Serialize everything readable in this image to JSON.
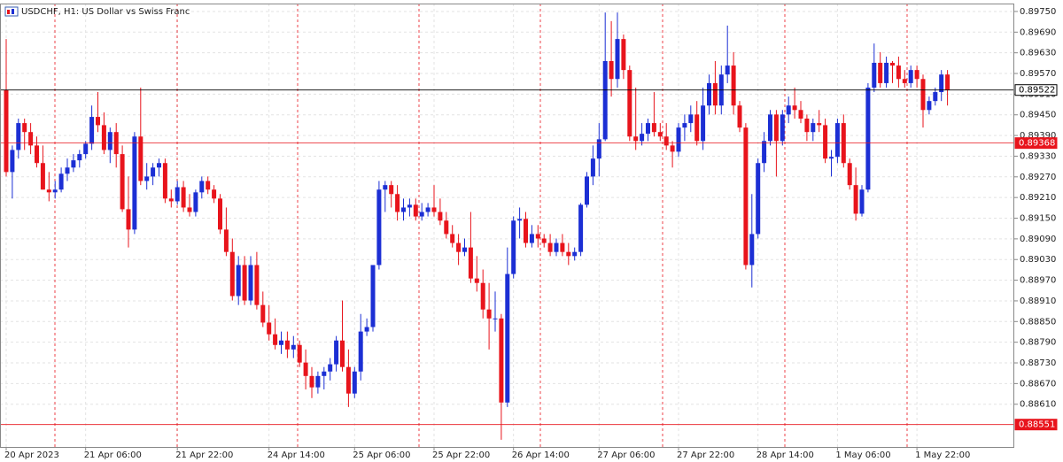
{
  "chart_data": {
    "type": "candlestick",
    "title": "USDCHF, H1:  US Dollar vs Swiss Franc",
    "up_color": "#1c2fd4",
    "down_color": "#e8141c",
    "grid": true,
    "ylim": [
      0.88486,
      0.89773
    ],
    "yticks": [
      {
        "value": 0.8975,
        "label": "0.89750"
      },
      {
        "value": 0.8969,
        "label": "0.89690"
      },
      {
        "value": 0.8963,
        "label": "0.89630"
      },
      {
        "value": 0.8957,
        "label": "0.89570"
      },
      {
        "value": 0.8951,
        "label": "0.89510"
      },
      {
        "value": 0.8945,
        "label": "0.89450"
      },
      {
        "value": 0.8939,
        "label": "0.89390"
      },
      {
        "value": 0.8933,
        "label": "0.89330"
      },
      {
        "value": 0.8927,
        "label": "0.89270"
      },
      {
        "value": 0.8921,
        "label": "0.89210"
      },
      {
        "value": 0.8915,
        "label": "0.89150"
      },
      {
        "value": 0.8909,
        "label": "0.89090"
      },
      {
        "value": 0.8903,
        "label": "0.89030"
      },
      {
        "value": 0.8897,
        "label": "0.88970"
      },
      {
        "value": 0.8891,
        "label": "0.88910"
      },
      {
        "value": 0.8885,
        "label": "0.88850"
      },
      {
        "value": 0.8879,
        "label": "0.88790"
      },
      {
        "value": 0.8873,
        "label": "0.88730"
      },
      {
        "value": 0.8867,
        "label": "0.88670"
      },
      {
        "value": 0.8861,
        "label": "0.88610"
      }
    ],
    "levels": [
      {
        "value": 0.89522,
        "color": "#000000"
      },
      {
        "value": 0.89368,
        "color": "#e8141c"
      },
      {
        "value": 0.88551,
        "color": "#e8141c"
      }
    ],
    "categories": [
      "20 Apr 2023",
      null,
      null,
      null,
      null,
      null,
      null,
      null,
      null,
      null,
      null,
      null,
      null,
      "21 Apr 06:00",
      null,
      null,
      null,
      null,
      null,
      null,
      null,
      null,
      null,
      null,
      null,
      null,
      null,
      null,
      "21 Apr 22:00",
      null,
      null,
      null,
      null,
      null,
      null,
      null,
      null,
      null,
      null,
      null,
      null,
      null,
      null,
      "24 Apr 14:00",
      null,
      null,
      null,
      null,
      null,
      null,
      null,
      null,
      null,
      null,
      null,
      null,
      null,
      "25 Apr 06:00",
      null,
      null,
      null,
      null,
      null,
      null,
      null,
      null,
      null,
      null,
      null,
      null,
      "25 Apr 22:00",
      null,
      null,
      null,
      null,
      null,
      null,
      null,
      null,
      null,
      null,
      null,
      null,
      "26 Apr 14:00",
      null,
      null,
      null,
      null,
      null,
      null,
      null,
      null,
      null,
      null,
      null,
      null,
      null,
      "27 Apr 06:00",
      null,
      null,
      null,
      null,
      null,
      null,
      null,
      null,
      null,
      null,
      null,
      null,
      "27 Apr 22:00",
      null,
      null,
      null,
      null,
      null,
      null,
      null,
      null,
      null,
      null,
      null,
      null,
      "28 Apr 14:00",
      null,
      null,
      null,
      null,
      null,
      null,
      null,
      null,
      null,
      null,
      null,
      null,
      "1 May 06:00",
      null,
      null,
      null,
      null,
      null,
      null,
      null,
      null,
      null,
      null,
      null,
      null,
      "1 May 22:00",
      null,
      null,
      null,
      null,
      null
    ],
    "candles": [
      [
        0.89522,
        0.8967,
        0.89271,
        0.89284
      ],
      [
        0.89284,
        0.89361,
        0.89207,
        0.89348
      ],
      [
        0.89348,
        0.89439,
        0.89323,
        0.89426
      ],
      [
        0.89426,
        0.89439,
        0.89348,
        0.894
      ],
      [
        0.894,
        0.89426,
        0.89336,
        0.89361
      ],
      [
        0.89361,
        0.89387,
        0.89297,
        0.8931
      ],
      [
        0.8931,
        0.89361,
        0.89233,
        0.89233
      ],
      [
        0.89233,
        0.89284,
        0.89199,
        0.89225
      ],
      [
        0.89225,
        0.89258,
        0.89207,
        0.89233
      ],
      [
        0.89233,
        0.89297,
        0.89225,
        0.89279
      ],
      [
        0.89279,
        0.89323,
        0.89258,
        0.89297
      ],
      [
        0.89297,
        0.89336,
        0.89284,
        0.89318
      ],
      [
        0.89318,
        0.89348,
        0.89297,
        0.89336
      ],
      [
        0.89336,
        0.89374,
        0.89323,
        0.89366
      ],
      [
        0.89366,
        0.89477,
        0.89348,
        0.89444
      ],
      [
        0.89444,
        0.89516,
        0.894,
        0.8942
      ],
      [
        0.8942,
        0.89457,
        0.89336,
        0.89348
      ],
      [
        0.89348,
        0.89413,
        0.8931,
        0.894
      ],
      [
        0.894,
        0.89426,
        0.89297,
        0.89336
      ],
      [
        0.89336,
        0.89361,
        0.89168,
        0.89176
      ],
      [
        0.89176,
        0.89271,
        0.89065,
        0.89117
      ],
      [
        0.89117,
        0.894,
        0.89104,
        0.89387
      ],
      [
        0.89387,
        0.89529,
        0.89246,
        0.89258
      ],
      [
        0.89258,
        0.8931,
        0.89233,
        0.89271
      ],
      [
        0.89271,
        0.8931,
        0.89246,
        0.89297
      ],
      [
        0.89297,
        0.89323,
        0.89271,
        0.8931
      ],
      [
        0.8931,
        0.89323,
        0.89194,
        0.89207
      ],
      [
        0.89207,
        0.89233,
        0.89181,
        0.89199
      ],
      [
        0.89199,
        0.89258,
        0.89189,
        0.8924
      ],
      [
        0.8924,
        0.89258,
        0.89168,
        0.89181
      ],
      [
        0.89181,
        0.8922,
        0.89155,
        0.89168
      ],
      [
        0.89168,
        0.89233,
        0.89155,
        0.89225
      ],
      [
        0.89225,
        0.89271,
        0.89207,
        0.89258
      ],
      [
        0.89258,
        0.89271,
        0.8922,
        0.89233
      ],
      [
        0.89233,
        0.89246,
        0.89194,
        0.89207
      ],
      [
        0.89207,
        0.8922,
        0.89104,
        0.89117
      ],
      [
        0.89117,
        0.89181,
        0.8904,
        0.89052
      ],
      [
        0.89052,
        0.89091,
        0.88911,
        0.88924
      ],
      [
        0.88924,
        0.8904,
        0.88898,
        0.89014
      ],
      [
        0.89014,
        0.8904,
        0.88898,
        0.88911
      ],
      [
        0.88911,
        0.8904,
        0.88898,
        0.89014
      ],
      [
        0.89014,
        0.89052,
        0.88885,
        0.88898
      ],
      [
        0.88898,
        0.88937,
        0.88834,
        0.88847
      ],
      [
        0.88847,
        0.88898,
        0.88795,
        0.88813
      ],
      [
        0.88813,
        0.88859,
        0.88769,
        0.88782
      ],
      [
        0.88782,
        0.88821,
        0.88756,
        0.88795
      ],
      [
        0.88795,
        0.88821,
        0.88744,
        0.88769
      ],
      [
        0.88769,
        0.88808,
        0.88744,
        0.88782
      ],
      [
        0.88782,
        0.88795,
        0.88718,
        0.88731
      ],
      [
        0.88731,
        0.88769,
        0.88653,
        0.88692
      ],
      [
        0.88692,
        0.88718,
        0.88628,
        0.88659
      ],
      [
        0.88659,
        0.88705,
        0.88641,
        0.88692
      ],
      [
        0.88692,
        0.88718,
        0.88653,
        0.88705
      ],
      [
        0.88705,
        0.88744,
        0.88679,
        0.88726
      ],
      [
        0.88726,
        0.88808,
        0.88705,
        0.88795
      ],
      [
        0.88795,
        0.88911,
        0.88705,
        0.88718
      ],
      [
        0.88718,
        0.88769,
        0.88602,
        0.88641
      ],
      [
        0.88641,
        0.88718,
        0.88628,
        0.88705
      ],
      [
        0.88705,
        0.88872,
        0.88679,
        0.88821
      ],
      [
        0.88821,
        0.88859,
        0.88808,
        0.88834
      ],
      [
        0.88834,
        0.89014,
        0.88821,
        0.89014
      ],
      [
        0.89014,
        0.89258,
        0.89001,
        0.89233
      ],
      [
        0.89233,
        0.89258,
        0.89168,
        0.89246
      ],
      [
        0.89246,
        0.89258,
        0.89181,
        0.8922
      ],
      [
        0.8922,
        0.89246,
        0.89143,
        0.89168
      ],
      [
        0.89168,
        0.89207,
        0.89143,
        0.89181
      ],
      [
        0.89181,
        0.89207,
        0.89155,
        0.89189
      ],
      [
        0.89189,
        0.89207,
        0.89143,
        0.89155
      ],
      [
        0.89155,
        0.89194,
        0.89143,
        0.89168
      ],
      [
        0.89168,
        0.89194,
        0.89155,
        0.89181
      ],
      [
        0.89181,
        0.89246,
        0.89155,
        0.89168
      ],
      [
        0.89168,
        0.89207,
        0.8913,
        0.89143
      ],
      [
        0.89143,
        0.89168,
        0.89091,
        0.89104
      ],
      [
        0.89104,
        0.8913,
        0.89065,
        0.89078
      ],
      [
        0.89078,
        0.89104,
        0.89014,
        0.89052
      ],
      [
        0.89052,
        0.89091,
        0.8904,
        0.89065
      ],
      [
        0.89065,
        0.89168,
        0.88962,
        0.88975
      ],
      [
        0.88975,
        0.8904,
        0.88937,
        0.88962
      ],
      [
        0.88962,
        0.89001,
        0.88859,
        0.88885
      ],
      [
        0.88885,
        0.88962,
        0.88769,
        0.88859
      ],
      [
        0.88859,
        0.88937,
        0.88821,
        0.88859
      ],
      [
        0.88859,
        0.88872,
        0.88507,
        0.88615
      ],
      [
        0.88615,
        0.89065,
        0.88602,
        0.88988
      ],
      [
        0.88988,
        0.89155,
        0.88975,
        0.89143
      ],
      [
        0.89143,
        0.89181,
        0.89091,
        0.89148
      ],
      [
        0.89148,
        0.89168,
        0.89065,
        0.89078
      ],
      [
        0.89078,
        0.8913,
        0.89065,
        0.89104
      ],
      [
        0.89104,
        0.8913,
        0.89065,
        0.89091
      ],
      [
        0.89091,
        0.89104,
        0.89065,
        0.89078
      ],
      [
        0.89078,
        0.89104,
        0.8904,
        0.89052
      ],
      [
        0.89052,
        0.89091,
        0.8904,
        0.89078
      ],
      [
        0.89078,
        0.89104,
        0.8904,
        0.89052
      ],
      [
        0.89052,
        0.89078,
        0.89014,
        0.8904
      ],
      [
        0.8904,
        0.89065,
        0.89027,
        0.89052
      ],
      [
        0.89052,
        0.89194,
        0.8904,
        0.89189
      ],
      [
        0.89189,
        0.89284,
        0.89181,
        0.89271
      ],
      [
        0.89271,
        0.89361,
        0.89246,
        0.89323
      ],
      [
        0.89323,
        0.89426,
        0.89271,
        0.89379
      ],
      [
        0.89379,
        0.89747,
        0.89374,
        0.89606
      ],
      [
        0.89606,
        0.89722,
        0.89503,
        0.89554
      ],
      [
        0.89554,
        0.89747,
        0.89529,
        0.8967
      ],
      [
        0.8967,
        0.89683,
        0.89554,
        0.8958
      ],
      [
        0.8958,
        0.89593,
        0.89374,
        0.89387
      ],
      [
        0.89387,
        0.89529,
        0.89348,
        0.89374
      ],
      [
        0.89374,
        0.89426,
        0.89361,
        0.89395
      ],
      [
        0.89395,
        0.89439,
        0.89374,
        0.89426
      ],
      [
        0.89426,
        0.89516,
        0.89387,
        0.894
      ],
      [
        0.894,
        0.89426,
        0.89374,
        0.89387
      ],
      [
        0.89387,
        0.89426,
        0.89348,
        0.89361
      ],
      [
        0.89361,
        0.89374,
        0.89297,
        0.89343
      ],
      [
        0.89343,
        0.89426,
        0.89328,
        0.89413
      ],
      [
        0.89413,
        0.89451,
        0.89374,
        0.89426
      ],
      [
        0.89426,
        0.89477,
        0.894,
        0.89451
      ],
      [
        0.89451,
        0.8949,
        0.89361,
        0.89374
      ],
      [
        0.89374,
        0.89529,
        0.89348,
        0.89477
      ],
      [
        0.89477,
        0.89567,
        0.89451,
        0.89542
      ],
      [
        0.89542,
        0.89606,
        0.89451,
        0.89477
      ],
      [
        0.89477,
        0.89593,
        0.89451,
        0.89567
      ],
      [
        0.89567,
        0.89709,
        0.89542,
        0.89593
      ],
      [
        0.89593,
        0.89632,
        0.89451,
        0.89477
      ],
      [
        0.89477,
        0.8949,
        0.894,
        0.89413
      ],
      [
        0.89413,
        0.89426,
        0.89001,
        0.89014
      ],
      [
        0.89014,
        0.8922,
        0.88949,
        0.89104
      ],
      [
        0.89104,
        0.89323,
        0.89091,
        0.8931
      ],
      [
        0.8931,
        0.894,
        0.89284,
        0.89374
      ],
      [
        0.89374,
        0.89464,
        0.89361,
        0.89451
      ],
      [
        0.89451,
        0.89464,
        0.89271,
        0.89374
      ],
      [
        0.89374,
        0.89464,
        0.89361,
        0.89451
      ],
      [
        0.89451,
        0.89503,
        0.89426,
        0.89477
      ],
      [
        0.89477,
        0.89529,
        0.89439,
        0.89464
      ],
      [
        0.89464,
        0.8949,
        0.89426,
        0.89439
      ],
      [
        0.89439,
        0.89451,
        0.89374,
        0.894
      ],
      [
        0.894,
        0.89439,
        0.89374,
        0.89426
      ],
      [
        0.89426,
        0.89464,
        0.894,
        0.8942
      ],
      [
        0.8942,
        0.89439,
        0.8931,
        0.89323
      ],
      [
        0.89323,
        0.89348,
        0.89271,
        0.89328
      ],
      [
        0.89328,
        0.89439,
        0.8931,
        0.89426
      ],
      [
        0.89426,
        0.89451,
        0.89297,
        0.8931
      ],
      [
        0.8931,
        0.89323,
        0.89233,
        0.89246
      ],
      [
        0.89246,
        0.89297,
        0.89143,
        0.89163
      ],
      [
        0.89163,
        0.89246,
        0.89155,
        0.89233
      ],
      [
        0.89233,
        0.89542,
        0.89225,
        0.89529
      ],
      [
        0.89529,
        0.89657,
        0.89516,
        0.89601
      ],
      [
        0.89601,
        0.89632,
        0.89529,
        0.89542
      ],
      [
        0.89542,
        0.89619,
        0.89529,
        0.89601
      ],
      [
        0.89601,
        0.89606,
        0.89542,
        0.89593
      ],
      [
        0.89593,
        0.89619,
        0.89529,
        0.89554
      ],
      [
        0.89554,
        0.8958,
        0.89529,
        0.89542
      ],
      [
        0.89542,
        0.89593,
        0.89529,
        0.8958
      ],
      [
        0.8958,
        0.89593,
        0.89529,
        0.89554
      ],
      [
        0.89554,
        0.89567,
        0.89413,
        0.89464
      ],
      [
        0.89464,
        0.89503,
        0.89451,
        0.8949
      ],
      [
        0.8949,
        0.89529,
        0.89477,
        0.89516
      ],
      [
        0.89516,
        0.8958,
        0.8949,
        0.89567
      ],
      [
        0.89567,
        0.8958,
        0.89477,
        0.89522
      ]
    ]
  }
}
